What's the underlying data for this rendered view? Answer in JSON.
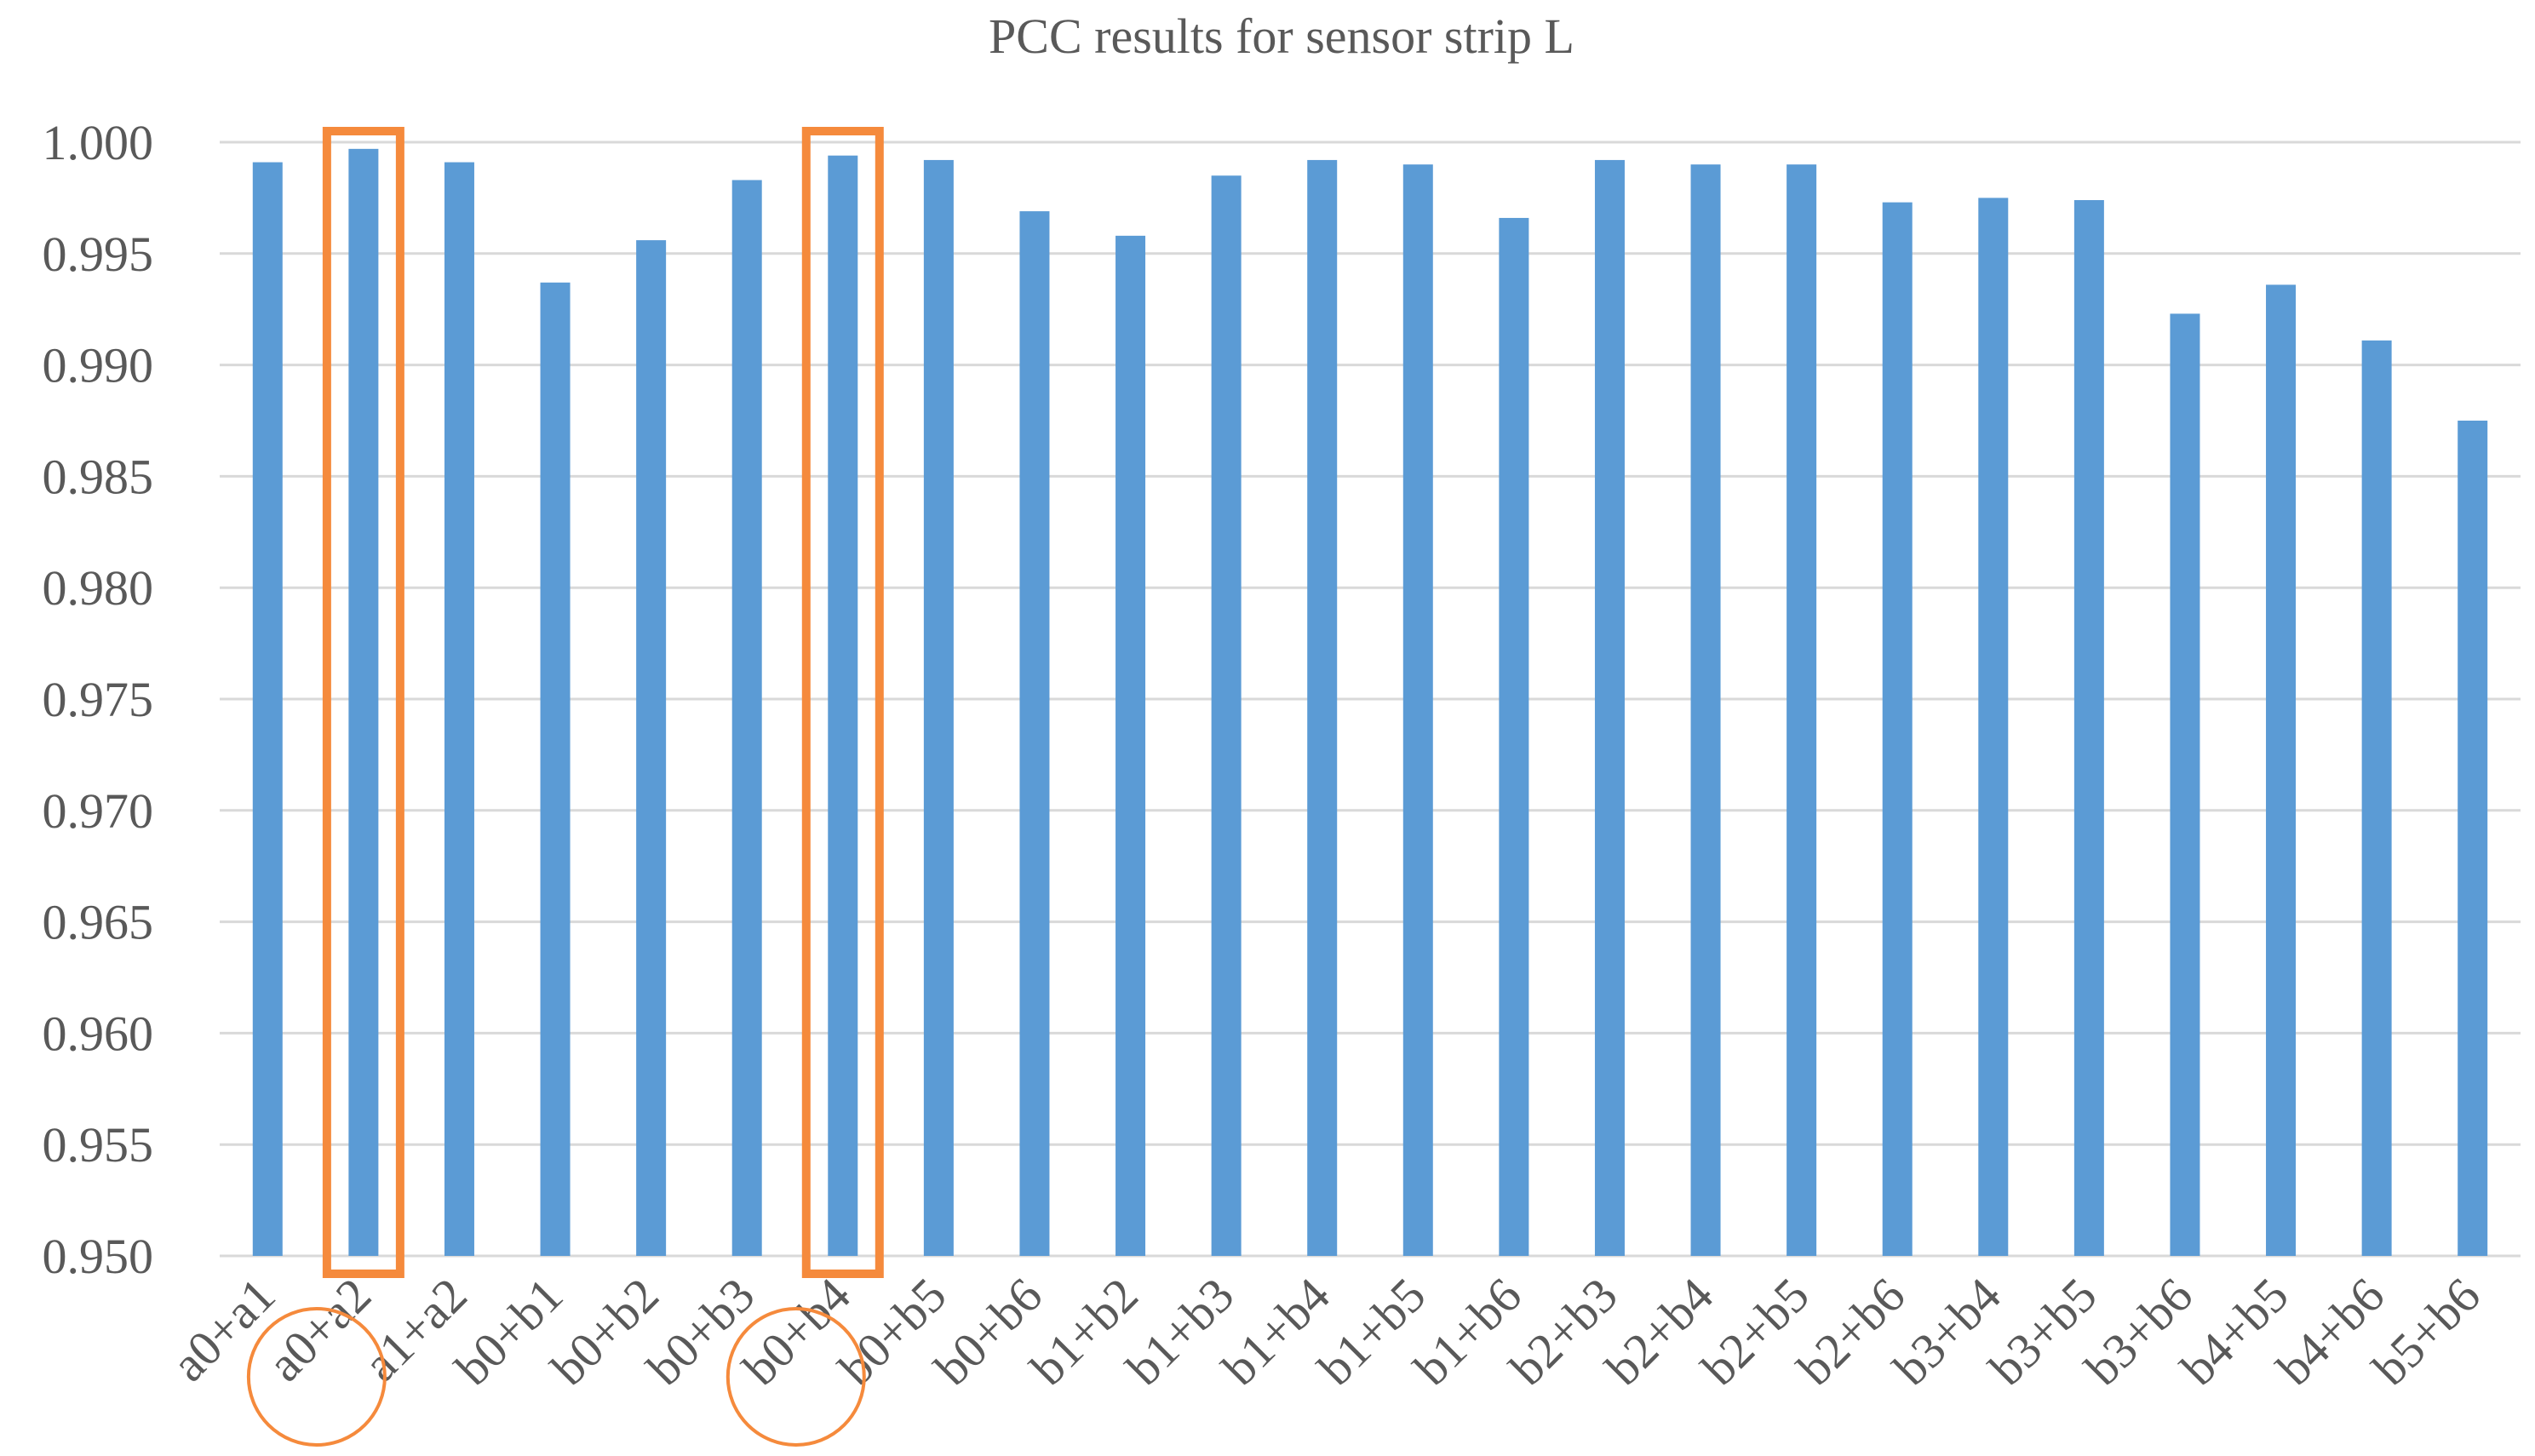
{
  "chart_data": {
    "type": "bar",
    "title": "PCC results for sensor strip L",
    "xlabel": "",
    "ylabel": "",
    "ylim": [
      0.95,
      1.0
    ],
    "yticks": [
      "0.950",
      "0.955",
      "0.960",
      "0.965",
      "0.970",
      "0.975",
      "0.980",
      "0.985",
      "0.990",
      "0.995",
      "1.000"
    ],
    "grid": true,
    "legend": "none",
    "categories": [
      "a0+a1",
      "a0+a2",
      "a1+a2",
      "b0+b1",
      "b0+b2",
      "b0+b3",
      "b0+b4",
      "b0+b5",
      "b0+b6",
      "b1+b2",
      "b1+b3",
      "b1+b4",
      "b1+b5",
      "b1+b6",
      "b2+b3",
      "b2+b4",
      "b2+b5",
      "b2+b6",
      "b3+b4",
      "b3+b5",
      "b3+b6",
      "b4+b5",
      "b4+b6",
      "b5+b6"
    ],
    "values": [
      0.9991,
      0.9997,
      0.9991,
      0.9937,
      0.9956,
      0.9983,
      0.9994,
      0.9992,
      0.9969,
      0.9958,
      0.9985,
      0.9992,
      0.999,
      0.9966,
      0.9992,
      0.999,
      0.999,
      0.9973,
      0.9975,
      0.9974,
      0.9923,
      0.9936,
      0.9911,
      0.9875
    ],
    "highlighted_categories": [
      "a0+a2",
      "b0+b4"
    ],
    "colors": {
      "bar": "#5b9bd5",
      "highlight": "#f58a3c",
      "grid": "#d9d9d9",
      "text": "#595959"
    }
  }
}
